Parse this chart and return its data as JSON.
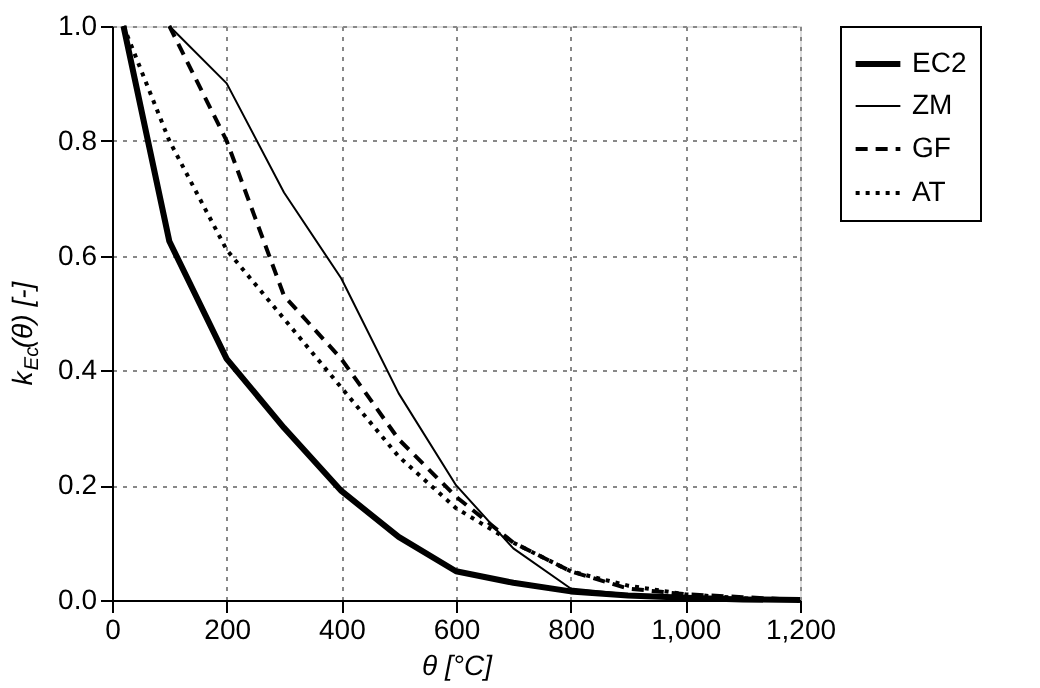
{
  "chart_data": {
    "type": "line",
    "xlabel": "θ [°C]",
    "ylabel": "k$_{Ec}$(θ) [-]",
    "series": [
      {
        "name": "EC2",
        "color": "#000000",
        "line_style": "solid",
        "x": [
          20,
          100,
          200,
          300,
          400,
          500,
          600,
          700,
          800,
          900,
          1000,
          1100,
          1200
        ],
        "values": [
          1,
          0.625,
          0.42,
          0.3,
          0.19,
          0.11,
          0.05,
          0.03,
          0.015,
          0.008,
          0.004,
          0.001,
          0
        ]
      },
      {
        "name": "ZM",
        "color": "#000000",
        "line_style": "solid",
        "x": [
          100,
          200,
          300,
          400,
          500,
          600,
          700,
          800,
          900,
          1000,
          1100,
          1200
        ],
        "values": [
          1,
          0.9,
          0.71,
          0.56,
          0.36,
          0.2,
          0.09,
          0.02,
          0.01,
          0.005,
          0.002,
          0
        ]
      },
      {
        "name": "GF",
        "color": "#000000",
        "line_style": "dashed",
        "x": [
          100,
          200,
          300,
          400,
          500,
          600,
          700,
          800,
          900,
          1000,
          1100,
          1200
        ],
        "values": [
          1,
          0.8,
          0.53,
          0.42,
          0.28,
          0.18,
          0.1,
          0.05,
          0.02,
          0.01,
          0.005,
          0
        ]
      },
      {
        "name": "AT",
        "color": "#000000",
        "line_style": "dotted",
        "x": [
          20,
          100,
          200,
          300,
          400,
          500,
          600,
          700,
          800,
          900,
          1000,
          1100,
          1200
        ],
        "values": [
          1,
          0.8,
          0.61,
          0.49,
          0.37,
          0.25,
          0.16,
          0.1,
          0.05,
          0.025,
          0.01,
          0.003,
          0
        ]
      }
    ],
    "xlim": [
      0,
      1200
    ],
    "ylim": [
      0,
      1
    ],
    "xticks": [
      0,
      200,
      400,
      600,
      800,
      {
        "value": 1000,
        "label": "1,000"
      },
      {
        "value": 1200,
        "label": "1,200"
      }
    ],
    "yticks": [
      {
        "value": 0,
        "label": "0.0"
      },
      {
        "value": 0.2,
        "label": "0.2"
      },
      {
        "value": 0.4,
        "label": "0.4"
      },
      {
        "value": 0.6,
        "label": "0.6"
      },
      {
        "value": 0.8,
        "label": "0.8"
      },
      {
        "value": 1,
        "label": "1.0"
      }
    ],
    "grid": true,
    "legend": "top right",
    "marker": "none"
  }
}
